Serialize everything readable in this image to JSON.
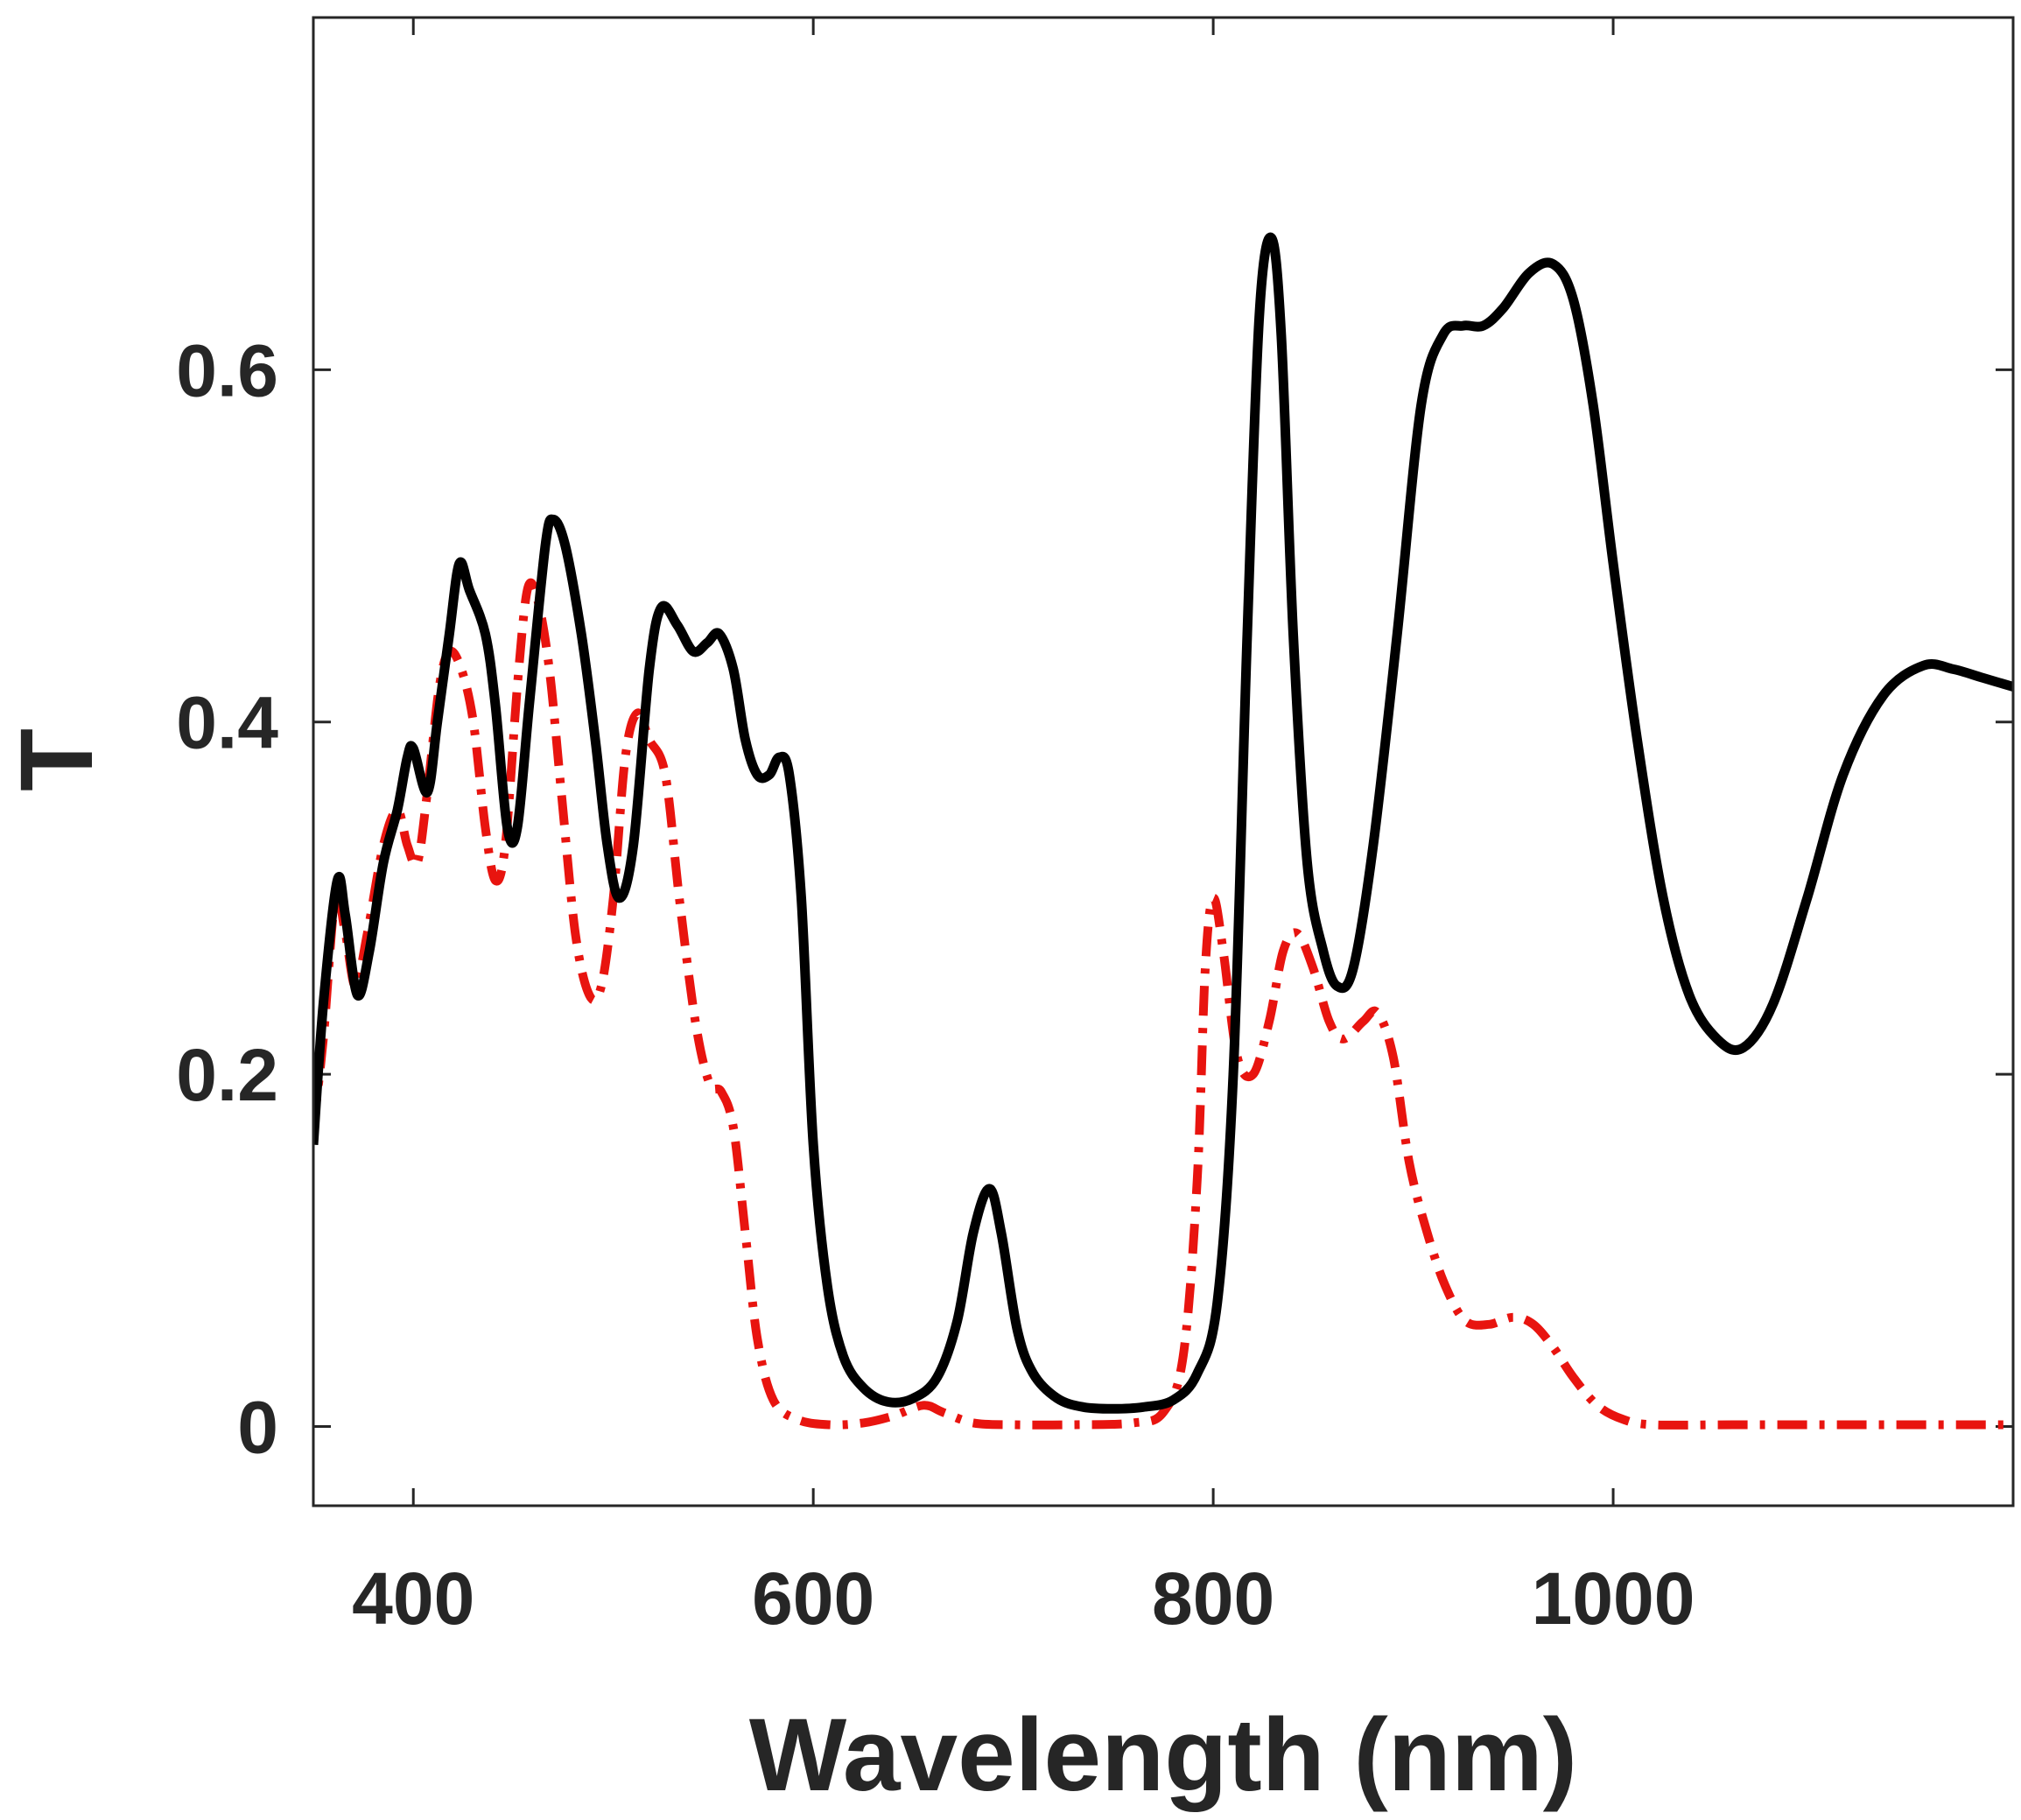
{
  "chart_data": {
    "type": "line",
    "title": "",
    "xlabel": "Wavelength (nm)",
    "ylabel": "T",
    "xlim": [
      350,
      1200
    ],
    "ylim": [
      -0.045,
      0.8
    ],
    "xticks": [
      400,
      600,
      800,
      1000
    ],
    "xtick_labels": [
      "400",
      "600",
      "800",
      "1000"
    ],
    "yticks": [
      0,
      0.2,
      0.4,
      0.6
    ],
    "ytick_labels": [
      "0",
      "0.2",
      "0.4",
      "0.6"
    ],
    "grid": false,
    "series": [
      {
        "name": "solid",
        "color": "#000000",
        "style": "solid",
        "points": [
          [
            350,
            0.16
          ],
          [
            355,
            0.24
          ],
          [
            362,
            0.31
          ],
          [
            366,
            0.29
          ],
          [
            372,
            0.245
          ],
          [
            378,
            0.27
          ],
          [
            385,
            0.32
          ],
          [
            392,
            0.35
          ],
          [
            397,
            0.38
          ],
          [
            400,
            0.385
          ],
          [
            407,
            0.36
          ],
          [
            412,
            0.4
          ],
          [
            418,
            0.45
          ],
          [
            423,
            0.49
          ],
          [
            428,
            0.475
          ],
          [
            436,
            0.45
          ],
          [
            441,
            0.41
          ],
          [
            447,
            0.34
          ],
          [
            452,
            0.34
          ],
          [
            458,
            0.41
          ],
          [
            466,
            0.5
          ],
          [
            470,
            0.515
          ],
          [
            476,
            0.5
          ],
          [
            484,
            0.45
          ],
          [
            491,
            0.39
          ],
          [
            497,
            0.33
          ],
          [
            503,
            0.3
          ],
          [
            510,
            0.33
          ],
          [
            518,
            0.43
          ],
          [
            524,
            0.465
          ],
          [
            532,
            0.455
          ],
          [
            540,
            0.44
          ],
          [
            547,
            0.445
          ],
          [
            553,
            0.45
          ],
          [
            560,
            0.43
          ],
          [
            566,
            0.39
          ],
          [
            572,
            0.37
          ],
          [
            578,
            0.37
          ],
          [
            583,
            0.38
          ],
          [
            588,
            0.37
          ],
          [
            594,
            0.3
          ],
          [
            600,
            0.16
          ],
          [
            607,
            0.08
          ],
          [
            615,
            0.04
          ],
          [
            625,
            0.022
          ],
          [
            637,
            0.014
          ],
          [
            650,
            0.016
          ],
          [
            662,
            0.028
          ],
          [
            672,
            0.06
          ],
          [
            680,
            0.11
          ],
          [
            688,
            0.135
          ],
          [
            694,
            0.11
          ],
          [
            702,
            0.055
          ],
          [
            710,
            0.03
          ],
          [
            722,
            0.016
          ],
          [
            735,
            0.011
          ],
          [
            750,
            0.01
          ],
          [
            765,
            0.011
          ],
          [
            780,
            0.015
          ],
          [
            792,
            0.03
          ],
          [
            802,
            0.07
          ],
          [
            810,
            0.2
          ],
          [
            817,
            0.45
          ],
          [
            823,
            0.63
          ],
          [
            829,
            0.675
          ],
          [
            834,
            0.62
          ],
          [
            840,
            0.45
          ],
          [
            847,
            0.32
          ],
          [
            855,
            0.27
          ],
          [
            862,
            0.25
          ],
          [
            870,
            0.26
          ],
          [
            880,
            0.33
          ],
          [
            892,
            0.45
          ],
          [
            904,
            0.58
          ],
          [
            915,
            0.62
          ],
          [
            925,
            0.625
          ],
          [
            935,
            0.625
          ],
          [
            945,
            0.635
          ],
          [
            958,
            0.655
          ],
          [
            970,
            0.66
          ],
          [
            980,
            0.64
          ],
          [
            990,
            0.58
          ],
          [
            1000,
            0.49
          ],
          [
            1012,
            0.39
          ],
          [
            1025,
            0.3
          ],
          [
            1038,
            0.245
          ],
          [
            1052,
            0.22
          ],
          [
            1065,
            0.215
          ],
          [
            1080,
            0.24
          ],
          [
            1097,
            0.3
          ],
          [
            1115,
            0.37
          ],
          [
            1135,
            0.415
          ],
          [
            1155,
            0.432
          ],
          [
            1170,
            0.43
          ],
          [
            1185,
            0.425
          ],
          [
            1200,
            0.42
          ]
        ]
      },
      {
        "name": "dash-dot",
        "color": "#e8140f",
        "style": "dash-dot",
        "points": [
          [
            350,
            0.17
          ],
          [
            355,
            0.22
          ],
          [
            361,
            0.3
          ],
          [
            366,
            0.28
          ],
          [
            371,
            0.25
          ],
          [
            377,
            0.28
          ],
          [
            385,
            0.33
          ],
          [
            392,
            0.35
          ],
          [
            397,
            0.33
          ],
          [
            402,
            0.32
          ],
          [
            407,
            0.36
          ],
          [
            413,
            0.42
          ],
          [
            418,
            0.44
          ],
          [
            424,
            0.43
          ],
          [
            430,
            0.4
          ],
          [
            436,
            0.34
          ],
          [
            441,
            0.31
          ],
          [
            446,
            0.33
          ],
          [
            452,
            0.42
          ],
          [
            457,
            0.475
          ],
          [
            462,
            0.47
          ],
          [
            468,
            0.43
          ],
          [
            474,
            0.36
          ],
          [
            481,
            0.28
          ],
          [
            488,
            0.245
          ],
          [
            494,
            0.25
          ],
          [
            500,
            0.3
          ],
          [
            506,
            0.38
          ],
          [
            512,
            0.405
          ],
          [
            518,
            0.39
          ],
          [
            526,
            0.37
          ],
          [
            533,
            0.3
          ],
          [
            541,
            0.23
          ],
          [
            548,
            0.195
          ],
          [
            554,
            0.19
          ],
          [
            560,
            0.17
          ],
          [
            566,
            0.11
          ],
          [
            572,
            0.05
          ],
          [
            580,
            0.015
          ],
          [
            592,
            0.004
          ],
          [
            608,
            0.001
          ],
          [
            625,
            0.002
          ],
          [
            640,
            0.006
          ],
          [
            655,
            0.012
          ],
          [
            665,
            0.008
          ],
          [
            680,
            0.002
          ],
          [
            700,
            0.001
          ],
          [
            730,
            0.001
          ],
          [
            760,
            0.002
          ],
          [
            775,
            0.008
          ],
          [
            785,
            0.04
          ],
          [
            792,
            0.14
          ],
          [
            796,
            0.26
          ],
          [
            800,
            0.3
          ],
          [
            805,
            0.27
          ],
          [
            812,
            0.21
          ],
          [
            820,
            0.2
          ],
          [
            828,
            0.23
          ],
          [
            835,
            0.27
          ],
          [
            842,
            0.28
          ],
          [
            850,
            0.26
          ],
          [
            858,
            0.23
          ],
          [
            865,
            0.22
          ],
          [
            875,
            0.23
          ],
          [
            882,
            0.235
          ],
          [
            890,
            0.21
          ],
          [
            898,
            0.15
          ],
          [
            907,
            0.11
          ],
          [
            916,
            0.08
          ],
          [
            926,
            0.06
          ],
          [
            938,
            0.058
          ],
          [
            950,
            0.062
          ],
          [
            960,
            0.058
          ],
          [
            970,
            0.045
          ],
          [
            980,
            0.028
          ],
          [
            992,
            0.012
          ],
          [
            1005,
            0.004
          ],
          [
            1020,
            0.001
          ],
          [
            1060,
            0.001
          ],
          [
            1120,
            0.001
          ],
          [
            1200,
            0.001
          ]
        ]
      }
    ]
  }
}
